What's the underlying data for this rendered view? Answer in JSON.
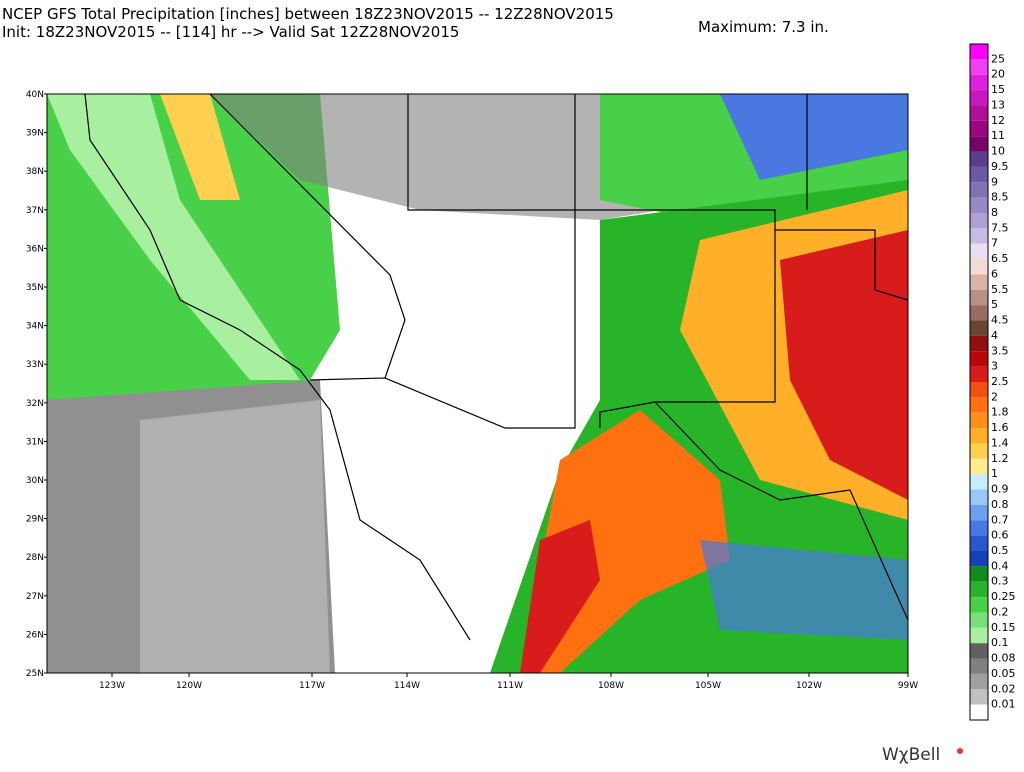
{
  "header": {
    "title": "NCEP GFS Total Precipitation [inches] between 18Z23NOV2015 -- 12Z28NOV2015",
    "subtitle": "Init: 18Z23NOV2015 -- [114] hr --> Valid Sat 12Z28NOV2015",
    "maximum": "Maximum: 7.3 in."
  },
  "map": {
    "lat_labels": [
      "40N",
      "39N",
      "38N",
      "37N",
      "36N",
      "35N",
      "34N",
      "33N",
      "32N",
      "31N",
      "30N",
      "29N",
      "28N",
      "27N",
      "26N",
      "25N"
    ],
    "lon_labels": [
      "123W",
      "120W",
      "117W",
      "114W",
      "111W",
      "108W",
      "105W",
      "102W",
      "99W"
    ]
  },
  "colorbar": {
    "labels": [
      "25",
      "20",
      "15",
      "13",
      "12",
      "11",
      "10",
      "9.5",
      "9",
      "8.5",
      "8",
      "7.5",
      "7",
      "6.5",
      "6",
      "5.5",
      "5",
      "4.5",
      "4",
      "3.5",
      "3",
      "2.5",
      "2",
      "1.8",
      "1.6",
      "1.4",
      "1.2",
      "1",
      "0.9",
      "0.8",
      "0.7",
      "0.6",
      "0.5",
      "0.4",
      "0.3",
      "0.25",
      "0.2",
      "0.15",
      "0.1",
      "0.08",
      "0.05",
      "0.02",
      "0.01"
    ],
    "colors": [
      "#ff00ff",
      "#f040f0",
      "#e020e0",
      "#c818c0",
      "#b01098",
      "#980880",
      "#780468",
      "#5c3c8c",
      "#6c58a4",
      "#8070b4",
      "#9888c4",
      "#b0a0d4",
      "#c8bce4",
      "#e8e0ec",
      "#f0dcd4",
      "#d8b4a8",
      "#b89084",
      "#986c60",
      "#6c4434",
      "#901010",
      "#b80808",
      "#d81c1c",
      "#f05010",
      "#ff7010",
      "#ff9018",
      "#ffb028",
      "#ffd050",
      "#ffec90",
      "#c8ecfc",
      "#98c8f8",
      "#6ca0f0",
      "#4878e0",
      "#2858d0",
      "#1840b8",
      "#108c18",
      "#28b428",
      "#48d048",
      "#78e078",
      "#a8f0a0",
      "#606060",
      "#808080",
      "#a0a0a0",
      "#c0c0c0",
      "#ffffff"
    ]
  },
  "logo": "WχBell"
}
